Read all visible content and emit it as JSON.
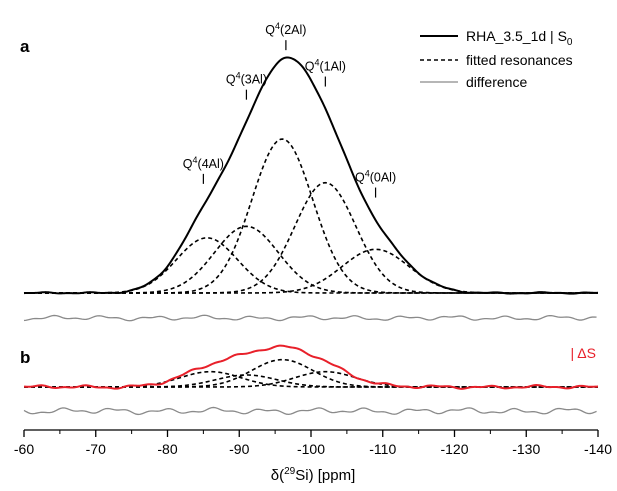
{
  "chart_data": {
    "type": "line",
    "xlabel": "δ(29Si) [ppm]",
    "xlabel_parts": [
      "δ(",
      "29",
      "Si) [ppm]"
    ],
    "xlim": [
      -60,
      -140
    ],
    "xticks": [
      -60,
      -70,
      -80,
      -90,
      -100,
      -110,
      -120,
      -130,
      -140
    ],
    "x_reversed": true,
    "grid": false,
    "colors": {
      "experimental": "#000000",
      "fitted": "#000000",
      "difference": "#8a8a8a",
      "delta_s": "#e8202a"
    },
    "panels": [
      {
        "id": "a",
        "letter": "a",
        "legend": {
          "placement": "top-right",
          "entries": [
            {
              "style": "solid",
              "label_parts": [
                "RHA_3.5_1d | S",
                "0"
              ]
            },
            {
              "style": "dashed",
              "label": "fitted resonances"
            },
            {
              "style": "thin-grey",
              "label": "difference"
            }
          ]
        },
        "peak_labels": [
          {
            "ppm": -85,
            "label_parts": [
              "Q",
              "4",
              "(4Al)"
            ]
          },
          {
            "ppm": -91,
            "label_parts": [
              "Q",
              "4",
              "(3Al)"
            ]
          },
          {
            "ppm": -96.5,
            "label_parts": [
              "Q",
              "4",
              "(2Al)"
            ]
          },
          {
            "ppm": -102,
            "label_parts": [
              "Q",
              "4",
              "(1Al)"
            ]
          },
          {
            "ppm": -109,
            "label_parts": [
              "Q",
              "4",
              "(0Al)"
            ]
          }
        ],
        "resonances": [
          {
            "center": -85.5,
            "fwhm": 10.0,
            "height": 0.24
          },
          {
            "center": -91.0,
            "fwhm": 10.5,
            "height": 0.29
          },
          {
            "center": -96.0,
            "fwhm": 10.0,
            "height": 0.67
          },
          {
            "center": -102.0,
            "fwhm": 10.0,
            "height": 0.48
          },
          {
            "center": -109.0,
            "fwhm": 11.0,
            "height": 0.19
          }
        ],
        "experimental_peak_max": 1.0,
        "experimental_peak_ppm": -97
      },
      {
        "id": "b",
        "letter": "b",
        "series_label": "| ΔS",
        "resonances": [
          {
            "center": -86.0,
            "fwhm": 10.0,
            "height": 0.42
          },
          {
            "center": -91.0,
            "fwhm": 10.0,
            "height": 0.33
          },
          {
            "center": -96.0,
            "fwhm": 10.0,
            "height": 0.75
          },
          {
            "center": -102.0,
            "fwhm": 10.0,
            "height": 0.42
          }
        ],
        "delta_s_peak_max": 1.0
      }
    ]
  }
}
